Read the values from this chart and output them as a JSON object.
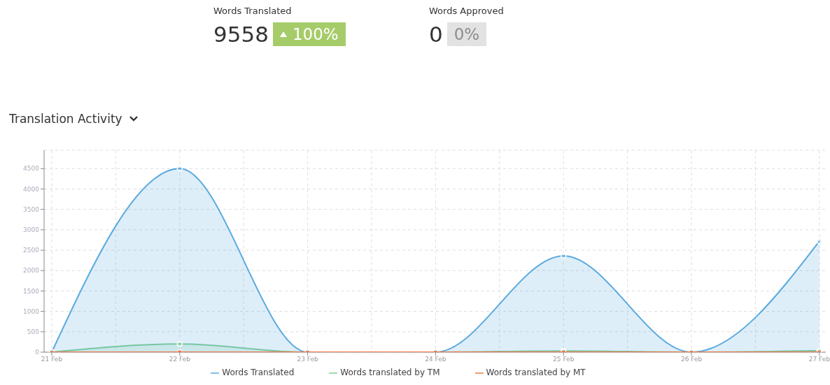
{
  "chart_data": [
    {
      "type": "other",
      "title": "Words Translated",
      "annotations": [
        "9558",
        "100%"
      ],
      "color": "#a6cc6a"
    },
    {
      "type": "other",
      "title": "Words Approved",
      "annotations": [
        "0",
        "0%"
      ],
      "color": "#e2e2e2"
    },
    {
      "type": "area",
      "title": "Translation Activity",
      "categories": [
        "21 Feb",
        "22 Feb",
        "23 Feb",
        "24 Feb",
        "25 Feb",
        "26 Feb",
        "27 Feb"
      ],
      "series": [
        {
          "name": "Words Translated",
          "color": "#5aaae0",
          "values": [
            0,
            4500,
            0,
            0,
            2360,
            0,
            2720
          ]
        },
        {
          "name": "Words translated by TM",
          "color": "#7fcf95",
          "values": [
            0,
            200,
            0,
            0,
            30,
            0,
            40
          ]
        },
        {
          "name": "Words translated by MT",
          "type": "line",
          "color": "#f07a4a",
          "values": [
            0,
            0,
            0,
            0,
            0,
            0,
            0
          ]
        }
      ],
      "ylim": [
        0,
        4950
      ],
      "yticks": [
        0,
        500,
        1000,
        1500,
        2000,
        2500,
        3000,
        3500,
        4000,
        4500
      ],
      "grid": true,
      "legend": "bottom",
      "marker": "circle",
      "line_style": "solid"
    }
  ]
}
